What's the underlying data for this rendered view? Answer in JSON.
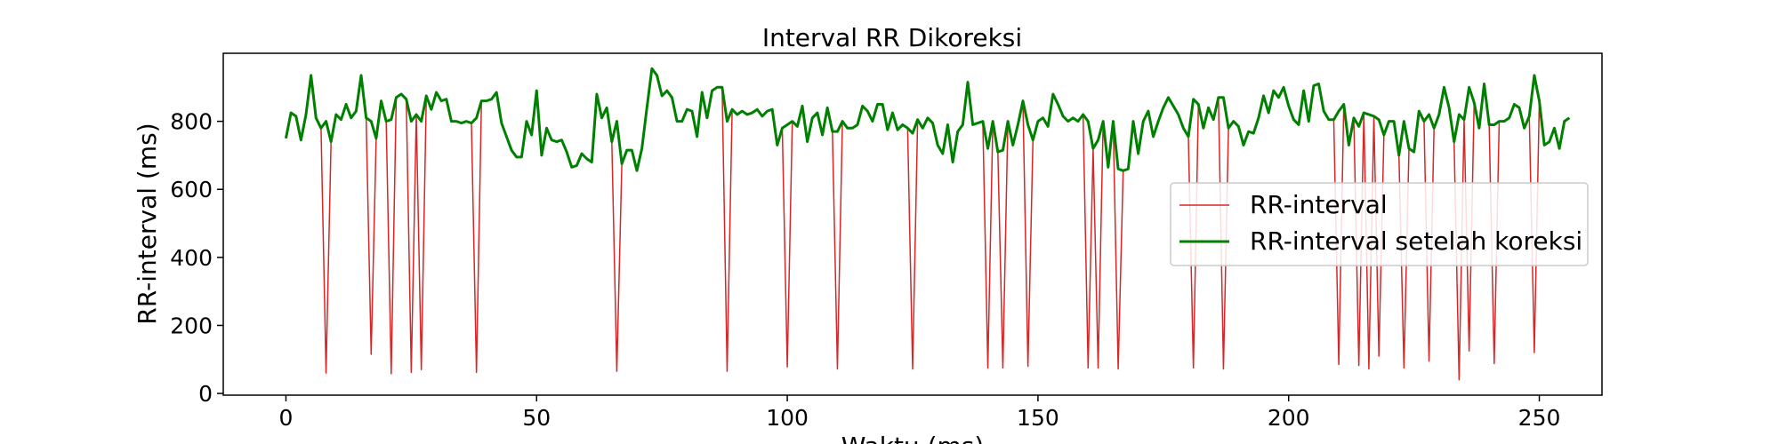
{
  "chart_data": {
    "type": "line",
    "title": "Interval RR Dikoreksi",
    "xlabel": "Waktu (ms)",
    "ylabel": "RR-interval (ms)",
    "xlim": [
      -12.5,
      262.5
    ],
    "ylim": [
      -5,
      1000
    ],
    "xticks": [
      0,
      50,
      100,
      150,
      200,
      250
    ],
    "yticks": [
      0,
      200,
      400,
      600,
      800
    ],
    "grid": false,
    "legend_position": "center-right",
    "colors": {
      "raw": "#d62728",
      "corrected": "#008000"
    },
    "corrected": [
      750,
      825,
      815,
      745,
      820,
      935,
      810,
      780,
      800,
      740,
      820,
      805,
      850,
      810,
      830,
      935,
      810,
      800,
      750,
      860,
      800,
      805,
      870,
      880,
      865,
      800,
      820,
      800,
      875,
      835,
      885,
      860,
      865,
      800,
      800,
      795,
      800,
      795,
      810,
      860,
      860,
      865,
      885,
      795,
      755,
      715,
      695,
      695,
      800,
      760,
      890,
      700,
      780,
      745,
      740,
      745,
      710,
      665,
      670,
      705,
      690,
      680,
      880,
      810,
      840,
      740,
      800,
      675,
      715,
      715,
      655,
      720,
      840,
      955,
      935,
      875,
      890,
      870,
      800,
      800,
      835,
      830,
      755,
      885,
      810,
      890,
      900,
      900,
      800,
      835,
      820,
      830,
      820,
      825,
      835,
      815,
      830,
      835,
      730,
      780,
      790,
      800,
      785,
      845,
      740,
      810,
      825,
      760,
      840,
      770,
      770,
      800,
      780,
      780,
      790,
      845,
      830,
      800,
      850,
      850,
      775,
      825,
      775,
      790,
      780,
      765,
      805,
      780,
      810,
      795,
      730,
      705,
      790,
      680,
      770,
      790,
      915,
      790,
      795,
      800,
      720,
      800,
      710,
      715,
      800,
      730,
      790,
      860,
      790,
      745,
      800,
      810,
      785,
      880,
      850,
      815,
      800,
      810,
      800,
      820,
      800,
      720,
      745,
      800,
      665,
      800,
      660,
      655,
      660,
      800,
      705,
      800,
      830,
      755,
      800,
      840,
      870,
      845,
      820,
      780,
      755,
      865,
      850,
      780,
      840,
      805,
      870,
      870,
      780,
      800,
      785,
      730,
      770,
      765,
      810,
      875,
      825,
      890,
      870,
      900,
      845,
      805,
      790,
      890,
      800,
      905,
      910,
      830,
      805,
      805,
      830,
      850,
      730,
      810,
      785,
      825,
      820,
      815,
      805,
      760,
      800,
      800,
      700,
      800,
      720,
      710,
      830,
      800,
      820,
      780,
      820,
      900,
      840,
      740,
      820,
      805,
      900,
      855,
      780,
      910,
      790,
      790,
      800,
      800,
      810,
      850,
      840,
      780,
      815,
      935,
      860,
      730,
      740,
      780,
      720,
      800,
      810
    ],
    "raw_dips": [
      {
        "x": 8,
        "y": 60
      },
      {
        "x": 17,
        "y": 115
      },
      {
        "x": 21,
        "y": 58
      },
      {
        "x": 25,
        "y": 62
      },
      {
        "x": 27,
        "y": 70
      },
      {
        "x": 38,
        "y": 62
      },
      {
        "x": 66,
        "y": 65
      },
      {
        "x": 88,
        "y": 65
      },
      {
        "x": 100,
        "y": 78
      },
      {
        "x": 110,
        "y": 72
      },
      {
        "x": 125,
        "y": 72
      },
      {
        "x": 140,
        "y": 75
      },
      {
        "x": 143,
        "y": 75
      },
      {
        "x": 148,
        "y": 80
      },
      {
        "x": 160,
        "y": 75
      },
      {
        "x": 162,
        "y": 75
      },
      {
        "x": 166,
        "y": 72
      },
      {
        "x": 181,
        "y": 75
      },
      {
        "x": 187,
        "y": 72
      },
      {
        "x": 210,
        "y": 85
      },
      {
        "x": 214,
        "y": 82
      },
      {
        "x": 216,
        "y": 72
      },
      {
        "x": 218,
        "y": 110
      },
      {
        "x": 223,
        "y": 75
      },
      {
        "x": 228,
        "y": 95
      },
      {
        "x": 234,
        "y": 40
      },
      {
        "x": 236,
        "y": 125
      },
      {
        "x": 241,
        "y": 88
      },
      {
        "x": 249,
        "y": 120
      }
    ],
    "series": [
      {
        "name": "RR-interval"
      },
      {
        "name": "RR-interval setelah koreksi"
      }
    ]
  }
}
